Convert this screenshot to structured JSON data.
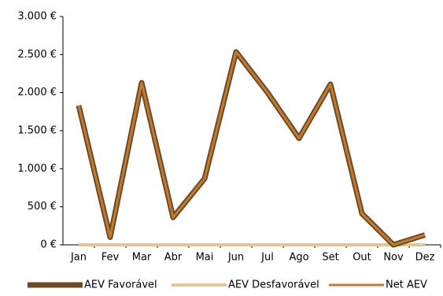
{
  "chart_data": {
    "type": "line",
    "categories": [
      "Jan",
      "Fev",
      "Mar",
      "Abr",
      "Mai",
      "Jun",
      "Jul",
      "Ago",
      "Set",
      "Out",
      "Nov",
      "Dez"
    ],
    "series": [
      {
        "name": "AEV Favorável",
        "color": "#6b4a1f",
        "values": [
          1830,
          100,
          2130,
          360,
          870,
          2535,
          2000,
          1400,
          2110,
          410,
          0,
          130
        ]
      },
      {
        "name": "AEV Desfavorável",
        "color": "#e3c49a",
        "values": [
          0,
          0,
          0,
          0,
          0,
          0,
          0,
          0,
          0,
          0,
          0,
          0
        ]
      },
      {
        "name": "Net AEV",
        "color": "#c27a35",
        "values": [
          1830,
          100,
          2130,
          360,
          870,
          2535,
          2000,
          1400,
          2110,
          410,
          0,
          130
        ]
      }
    ],
    "ylim": [
      0,
      3000
    ],
    "yticks": [
      {
        "value": 0,
        "label": "0 €"
      },
      {
        "value": 500,
        "label": "500 €"
      },
      {
        "value": 1000,
        "label": "1.000 €"
      },
      {
        "value": 1500,
        "label": "1.500 €"
      },
      {
        "value": 2000,
        "label": "2.000 €"
      },
      {
        "value": 2500,
        "label": "2.500 €"
      },
      {
        "value": 3000,
        "label": "3.000 €"
      }
    ],
    "legend": "bottom"
  }
}
